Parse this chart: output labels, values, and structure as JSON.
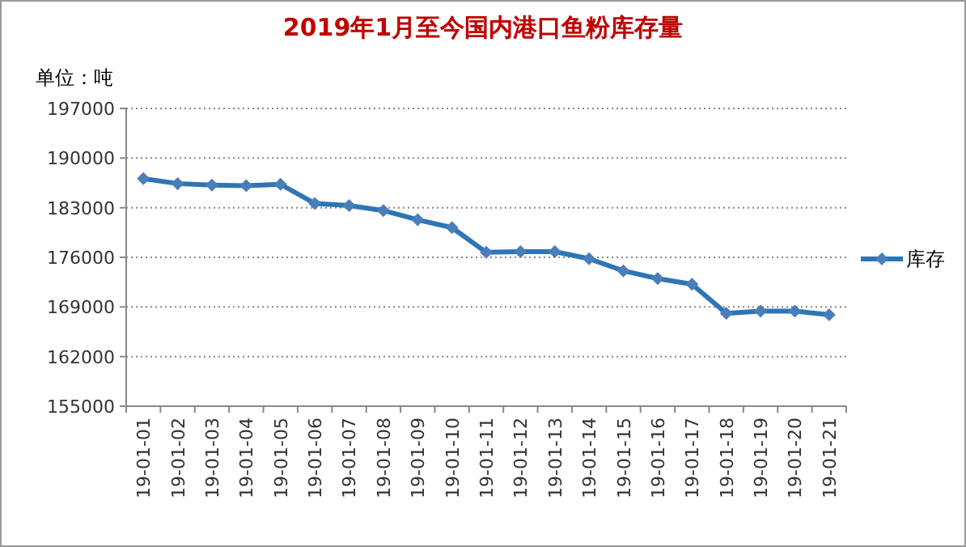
{
  "chart_data": {
    "type": "line",
    "title": "2019年1月至今国内港口鱼粉库存量",
    "ylabel": "单位：吨",
    "categories": [
      "19-01-01",
      "19-01-02",
      "19-01-03",
      "19-01-04",
      "19-01-05",
      "19-01-06",
      "19-01-07",
      "19-01-08",
      "19-01-09",
      "19-01-10",
      "19-01-11",
      "19-01-12",
      "19-01-13",
      "19-01-14",
      "19-01-15",
      "19-01-16",
      "19-01-17",
      "19-01-18",
      "19-01-19",
      "19-01-20",
      "19-01-21"
    ],
    "series": [
      {
        "name": "库存",
        "color": "#2e75b6",
        "values": [
          187100,
          186400,
          186200,
          186100,
          186300,
          183600,
          183300,
          182600,
          181300,
          180200,
          176700,
          176800,
          176800,
          175800,
          174100,
          173000,
          172200,
          168100,
          168400,
          168400,
          167900
        ]
      }
    ],
    "ylim": [
      155000,
      197000
    ],
    "yticks": [
      155000,
      162000,
      169000,
      176000,
      183000,
      190000,
      197000
    ],
    "grid": "y",
    "legend": "right",
    "marker": "diamond",
    "line_style": "solid"
  }
}
